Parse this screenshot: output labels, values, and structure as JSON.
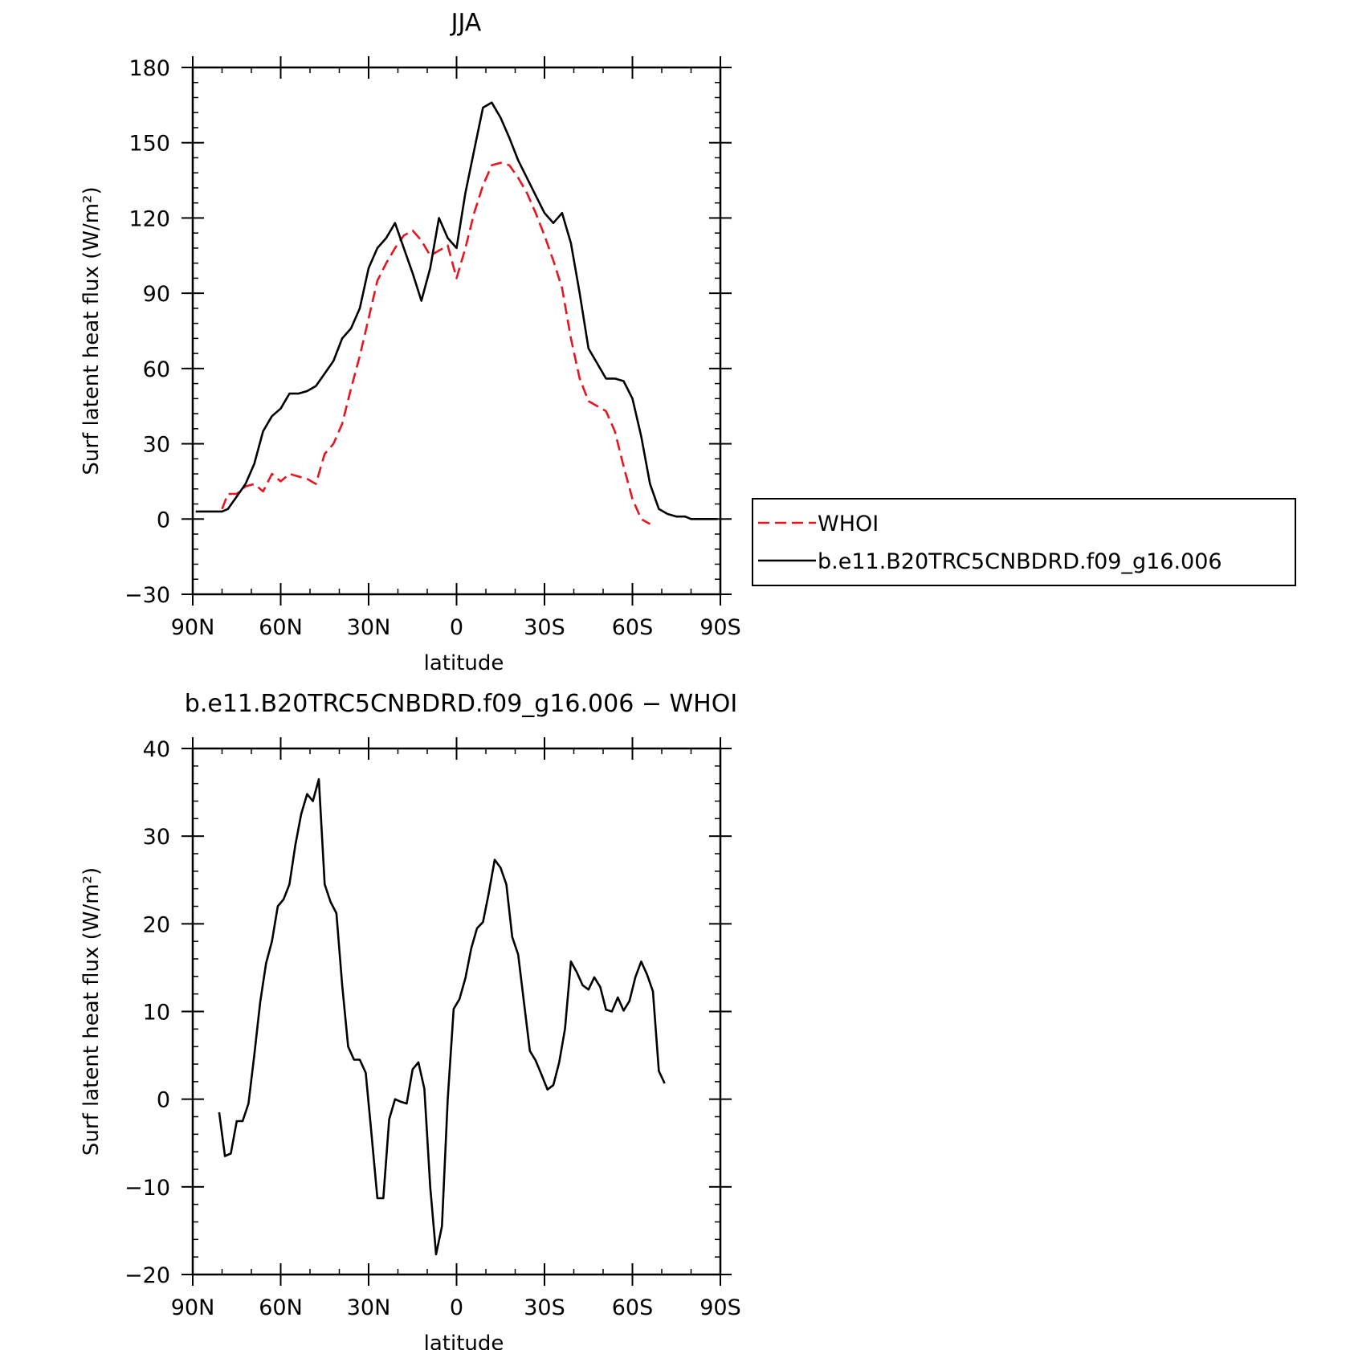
{
  "chart_data": [
    {
      "type": "line",
      "title": "JJA",
      "xlabel": "latitude",
      "ylabel": "Surf latent heat flux (W/m²)",
      "x_tick_labels": [
        "90N",
        "60N",
        "30N",
        "0",
        "30S",
        "60S",
        "90S"
      ],
      "x_tick_values": [
        90,
        60,
        30,
        0,
        -30,
        -60,
        -90
      ],
      "xlim": [
        90,
        -90
      ],
      "ylim": [
        -30,
        180
      ],
      "y_ticks": [
        -30,
        0,
        30,
        60,
        90,
        120,
        150,
        180
      ],
      "legend_position": "right",
      "series": [
        {
          "name": "WHOI",
          "color": "#e8141e",
          "dash": "dashed",
          "x": [
            80,
            78,
            75,
            72,
            69,
            66,
            63,
            60,
            57,
            54,
            51,
            48,
            45,
            42,
            39,
            36,
            33,
            30,
            27,
            24,
            21,
            18,
            15,
            12,
            9,
            6,
            3,
            0,
            -3,
            -6,
            -9,
            -12,
            -15,
            -18,
            -21,
            -24,
            -27,
            -30,
            -33,
            -36,
            -39,
            -42,
            -45,
            -48,
            -51,
            -54,
            -57,
            -60,
            -63,
            -66,
            -69,
            -72
          ],
          "y": [
            4,
            10,
            10,
            13,
            14,
            11,
            18,
            15,
            18,
            17,
            16,
            14,
            26,
            30,
            38,
            52,
            65,
            80,
            95,
            102,
            108,
            113,
            115,
            111,
            105,
            107,
            109,
            96,
            108,
            122,
            133,
            141,
            142,
            141,
            136,
            130,
            122,
            113,
            103,
            92,
            72,
            56,
            47,
            45,
            43,
            35,
            21,
            8,
            0,
            -2,
            null,
            null
          ]
        },
        {
          "name": "b.e11.B20TRC5CNBDRD.f09_g16.006",
          "color": "#000000",
          "dash": "solid",
          "x": [
            89,
            86,
            83,
            80,
            78,
            75,
            72,
            69,
            66,
            63,
            60,
            57,
            54,
            51,
            48,
            45,
            42,
            39,
            36,
            33,
            30,
            27,
            24,
            21,
            18,
            15,
            12,
            9,
            6,
            3,
            0,
            -3,
            -6,
            -9,
            -12,
            -15,
            -18,
            -21,
            -24,
            -27,
            -30,
            -33,
            -36,
            -39,
            -42,
            -45,
            -48,
            -51,
            -54,
            -57,
            -60,
            -63,
            -66,
            -69,
            -72,
            -75,
            -78,
            -80,
            -84,
            -89
          ],
          "y": [
            3,
            3,
            3,
            3,
            4,
            9,
            14,
            22,
            35,
            41,
            44,
            50,
            50,
            51,
            53,
            58,
            63,
            72,
            76,
            84,
            100,
            108,
            112,
            118,
            108,
            98,
            87,
            100,
            120,
            112,
            108,
            130,
            147,
            164,
            166,
            160,
            152,
            143,
            136,
            129,
            122,
            118,
            122,
            110,
            90,
            68,
            62,
            56,
            56,
            55,
            48,
            33,
            14,
            4,
            2,
            1,
            1,
            0,
            0,
            0
          ]
        }
      ]
    },
    {
      "type": "line",
      "title": "b.e11.B20TRC5CNBDRD.f09_g16.006 − WHOI",
      "xlabel": "latitude",
      "ylabel": "Surf latent heat flux (W/m²)",
      "x_tick_labels": [
        "90N",
        "60N",
        "30N",
        "0",
        "30S",
        "60S",
        "90S"
      ],
      "x_tick_values": [
        90,
        60,
        30,
        0,
        -30,
        -60,
        -90
      ],
      "xlim": [
        90,
        -90
      ],
      "ylim": [
        -20,
        40
      ],
      "y_ticks": [
        -20,
        -10,
        0,
        10,
        20,
        30,
        40
      ],
      "series": [
        {
          "name": "",
          "color": "#000000",
          "dash": "solid",
          "x": [
            81,
            79,
            77,
            75,
            73,
            71,
            69,
            67,
            65,
            63,
            61,
            59,
            57,
            55,
            53,
            51,
            49,
            47,
            45,
            43,
            41,
            39,
            37,
            35,
            33,
            31,
            29,
            27,
            25,
            23,
            21,
            19,
            17,
            15,
            13,
            11,
            9,
            7,
            5,
            3,
            1,
            -1,
            -3,
            -5,
            -7,
            -9,
            -11,
            -13,
            -15,
            -17,
            -19,
            -21,
            -23,
            -25,
            -27,
            -29,
            -31,
            -33,
            -35,
            -37,
            -39,
            -41,
            -43,
            -45,
            -47,
            -49,
            -51,
            -53,
            -55,
            -57,
            -59,
            -61,
            -63,
            -65,
            -67,
            -69,
            -71
          ],
          "y": [
            -1.5,
            -6.5,
            -6.2,
            -2.5,
            -2.5,
            -0.5,
            5,
            11,
            15.5,
            18,
            22,
            22.8,
            24.5,
            29,
            32.5,
            34.8,
            34,
            36.5,
            24.5,
            22.5,
            21.2,
            13,
            6,
            4.5,
            4.5,
            3,
            -4,
            -11.3,
            -11.3,
            -2.3,
            0,
            -0.3,
            -0.5,
            3.4,
            4.2,
            1.2,
            -10,
            -17.7,
            -14.5,
            0,
            10.3,
            11.4,
            13.8,
            17.2,
            19.5,
            20.2,
            23.5,
            27.3,
            26.4,
            24.5,
            18.5,
            16.5,
            11,
            5.5,
            4.4,
            2.8,
            1.1,
            1.6,
            4.2,
            8,
            15.7,
            14.5,
            13,
            12.5,
            13.9,
            12.8,
            10.2,
            10,
            11.6,
            10.1,
            11.2,
            13.9,
            15.7,
            14.2,
            12.3,
            3.2,
            1.8
          ]
        }
      ]
    }
  ]
}
